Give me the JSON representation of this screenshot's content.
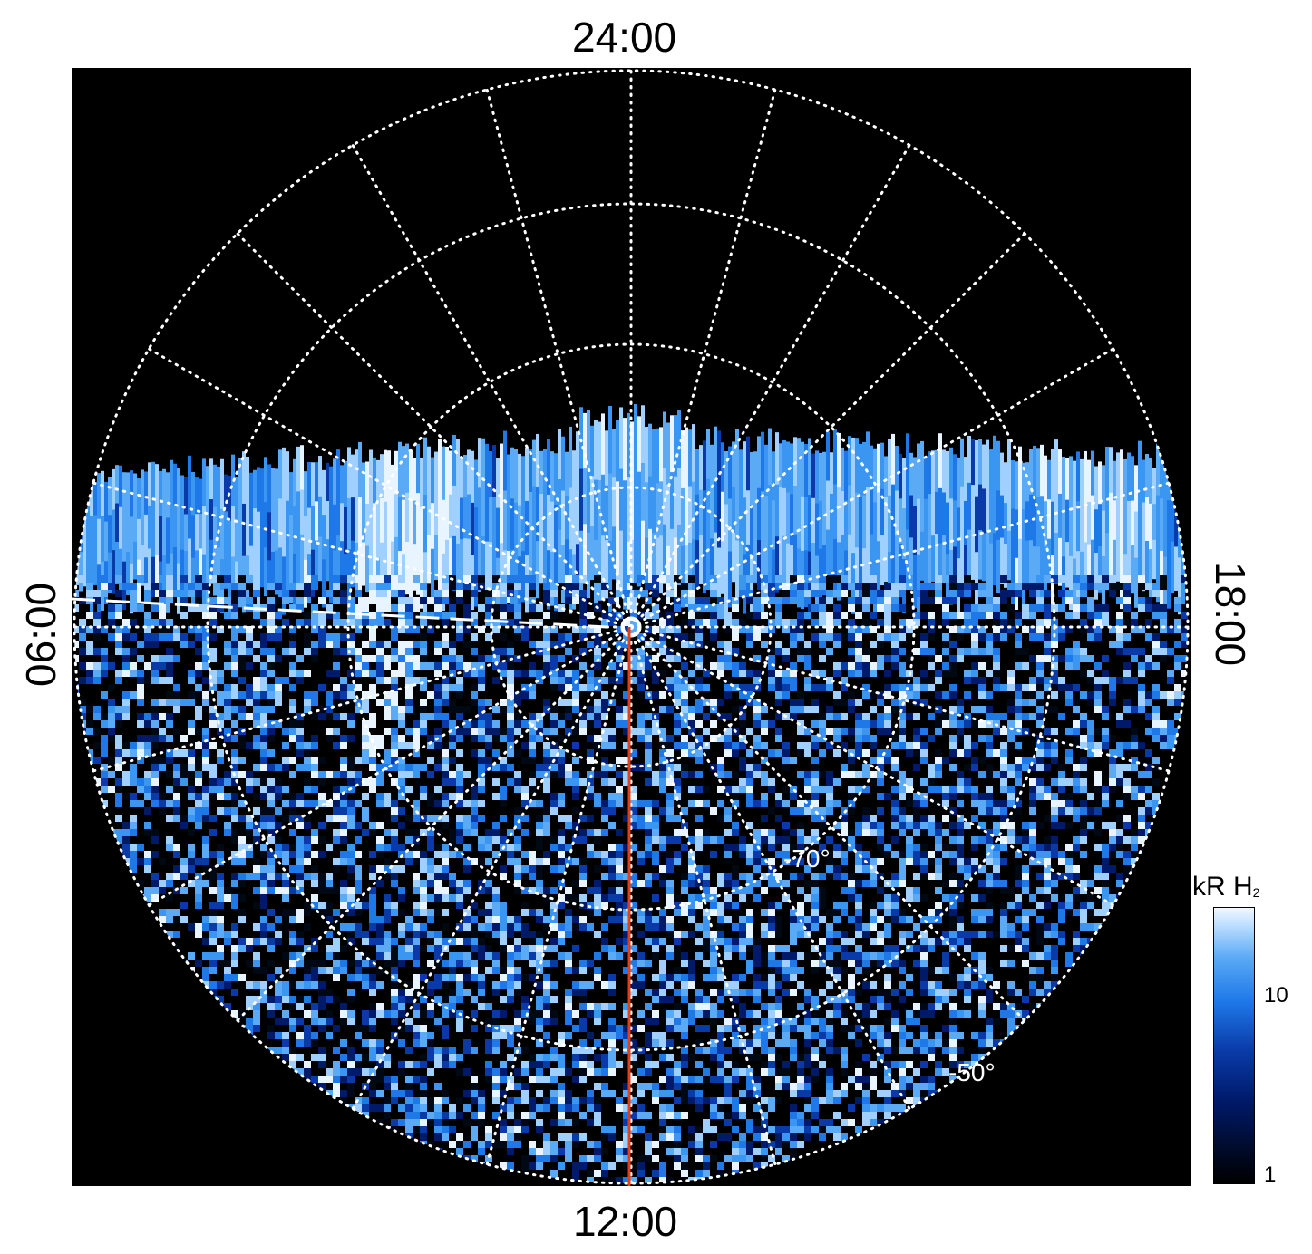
{
  "chart_data": {
    "type": "heatmap",
    "projection": "polar",
    "local_time_labels": {
      "top": "24:00",
      "bottom": "12:00",
      "left": "06:00",
      "right": "18:00"
    },
    "latitude_labels": [
      "-70°",
      "-50°"
    ],
    "latitude_circles_deg": [
      -80,
      -70,
      -60,
      -50
    ],
    "grid": true,
    "colorbar": {
      "title": "kR H",
      "title_subscript": "2",
      "scale": "log",
      "range": [
        1,
        30
      ],
      "tick_labels": [
        "10",
        "1"
      ],
      "tick_values": [
        10,
        1
      ],
      "colors": [
        "#000000",
        "#001a6a",
        "#1e78e8",
        "#5aaaf5",
        "#f2f8ff"
      ]
    },
    "meridian_line_color": "#e0401a",
    "background_color": "#000000"
  }
}
